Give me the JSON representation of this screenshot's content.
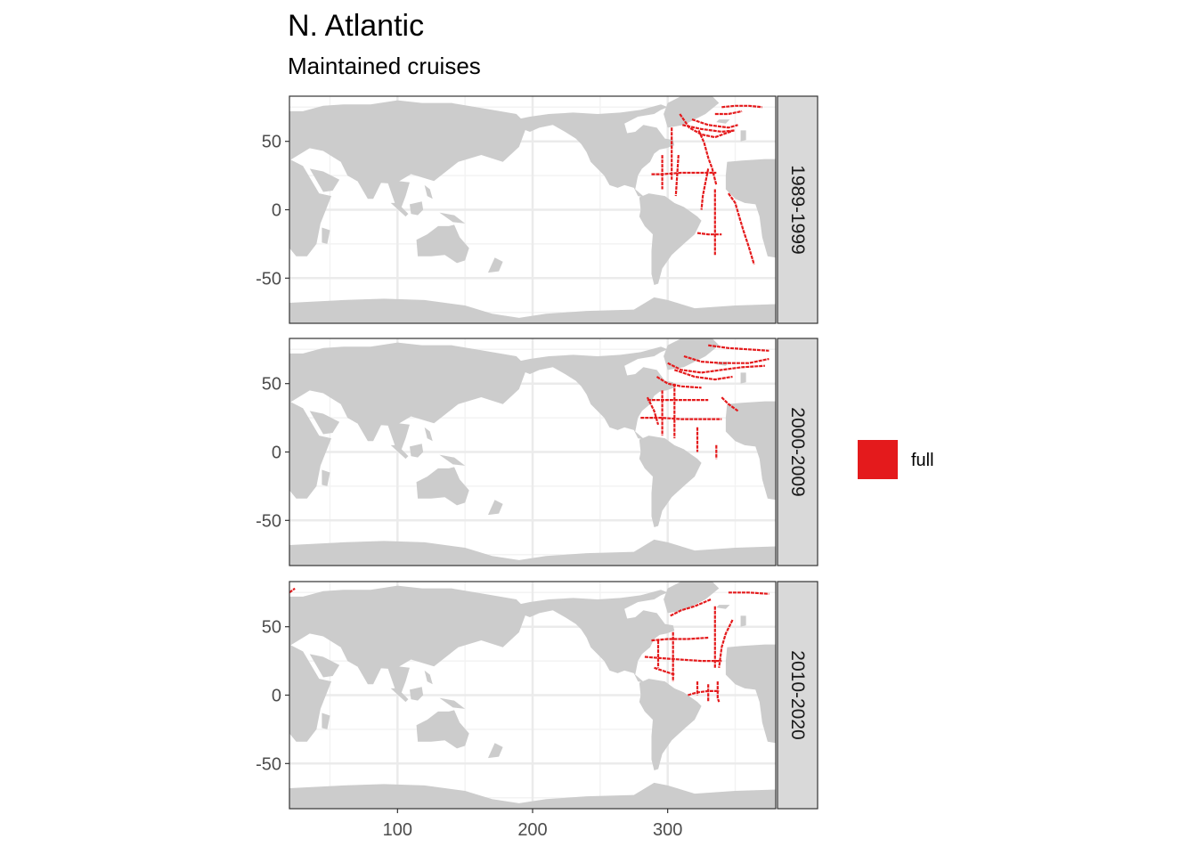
{
  "title": "N. Atlantic",
  "subtitle": "Maintained cruises",
  "colors": {
    "land": "#cccccc",
    "ocean": "#ffffff",
    "grid": "#ebebeb",
    "track": "#e41a1c",
    "strip": "#d9d9d9",
    "border": "#333333"
  },
  "chart_data": {
    "type": "map",
    "x_ticks": [
      100,
      200,
      300
    ],
    "y_ticks": [
      50,
      0,
      -50
    ],
    "xlim": [
      20,
      380
    ],
    "ylim": [
      -83,
      83
    ],
    "grid": true,
    "legend_position": "right",
    "legend": [
      {
        "label": "full",
        "color": "#e41a1c"
      }
    ],
    "panels": [
      {
        "strip": "1989-1999",
        "tracks": [
          [
            [
              309,
              70
            ],
            [
              316,
              60
            ],
            [
              325,
              55
            ],
            [
              335,
              53
            ],
            [
              349,
              58
            ]
          ],
          [
            [
              311,
              62
            ],
            [
              325,
              59
            ],
            [
              340,
              57
            ],
            [
              350,
              58
            ]
          ],
          [
            [
              318,
              66
            ],
            [
              330,
              62
            ],
            [
              345,
              60
            ],
            [
              352,
              62
            ]
          ],
          [
            [
              323,
              58
            ],
            [
              327,
              49
            ],
            [
              330,
              38
            ],
            [
              333,
              30
            ],
            [
              336,
              18
            ]
          ],
          [
            [
              303,
              60
            ],
            [
              303,
              40
            ],
            [
              303,
              22
            ]
          ],
          [
            [
              288,
              26
            ],
            [
              296,
              26
            ],
            [
              310,
              27
            ],
            [
              322,
              27
            ],
            [
              336,
              27
            ]
          ],
          [
            [
              308,
              40
            ],
            [
              307,
              25
            ],
            [
              306,
              10
            ]
          ],
          [
            [
              296,
              40
            ],
            [
              296,
              30
            ],
            [
              296,
              15
            ]
          ],
          [
            [
              330,
              30
            ],
            [
              328,
              20
            ],
            [
              326,
              10
            ],
            [
              325,
              0
            ]
          ],
          [
            [
              335,
              15
            ],
            [
              335,
              0
            ],
            [
              335,
              -20
            ],
            [
              335,
              -33
            ]
          ],
          [
            [
              322,
              -17
            ],
            [
              330,
              -18
            ],
            [
              340,
              -18
            ]
          ],
          [
            [
              345,
              12
            ],
            [
              350,
              5
            ],
            [
              353,
              -5
            ],
            [
              356,
              -15
            ],
            [
              360,
              -27
            ],
            [
              364,
              -40
            ]
          ],
          [
            [
              340,
              75
            ],
            [
              350,
              76
            ],
            [
              360,
              76
            ],
            [
              370,
              75
            ]
          ],
          [
            [
              335,
              70
            ],
            [
              345,
              70
            ],
            [
              355,
              72
            ]
          ]
        ]
      },
      {
        "strip": "2000-2009",
        "tracks": [
          [
            [
              300,
              65
            ],
            [
              310,
              60
            ],
            [
              325,
              58
            ],
            [
              340,
              60
            ],
            [
              355,
              62
            ],
            [
              372,
              63
            ]
          ],
          [
            [
              305,
              60
            ],
            [
              320,
              55
            ],
            [
              335,
              53
            ],
            [
              348,
              55
            ]
          ],
          [
            [
              312,
              70
            ],
            [
              325,
              66
            ],
            [
              340,
              65
            ],
            [
              360,
              65
            ],
            [
              375,
              68
            ]
          ],
          [
            [
              330,
              78
            ],
            [
              345,
              76
            ],
            [
              360,
              75
            ],
            [
              375,
              74
            ]
          ],
          [
            [
              292,
              55
            ],
            [
              300,
              50
            ],
            [
              310,
              48
            ],
            [
              325,
              47
            ]
          ],
          [
            [
              285,
              38
            ],
            [
              298,
              38
            ],
            [
              312,
              38
            ],
            [
              330,
              38
            ]
          ],
          [
            [
              280,
              25
            ],
            [
              295,
              25
            ],
            [
              310,
              24
            ],
            [
              325,
              24
            ],
            [
              340,
              24
            ]
          ],
          [
            [
              305,
              50
            ],
            [
              305,
              30
            ],
            [
              305,
              10
            ]
          ],
          [
            [
              296,
              45
            ],
            [
              296,
              30
            ],
            [
              296,
              12
            ]
          ],
          [
            [
              285,
              40
            ],
            [
              290,
              30
            ],
            [
              293,
              20
            ]
          ],
          [
            [
              322,
              18
            ],
            [
              322,
              5
            ],
            [
              322,
              0
            ]
          ],
          [
            [
              336,
              5
            ],
            [
              336,
              -2
            ],
            [
              336,
              -5
            ]
          ],
          [
            [
              340,
              40
            ],
            [
              345,
              35
            ],
            [
              352,
              30
            ]
          ]
        ]
      },
      {
        "strip": "2010-2020",
        "tracks": [
          [
            [
              345,
              75
            ],
            [
              360,
              75
            ],
            [
              375,
              74
            ]
          ],
          [
            [
              302,
              58
            ],
            [
              310,
              62
            ],
            [
              320,
              65
            ],
            [
              332,
              70
            ]
          ],
          [
            [
              288,
              40
            ],
            [
              300,
              41
            ],
            [
              315,
              41
            ],
            [
              330,
              42
            ]
          ],
          [
            [
              283,
              28
            ],
            [
              295,
              27
            ],
            [
              310,
              26
            ],
            [
              325,
              25
            ],
            [
              340,
              25
            ]
          ],
          [
            [
              304,
              46
            ],
            [
              304,
              35
            ],
            [
              304,
              20
            ],
            [
              304,
              10
            ]
          ],
          [
            [
              293,
              40
            ],
            [
              293,
              30
            ],
            [
              293,
              20
            ]
          ],
          [
            [
              335,
              65
            ],
            [
              335,
              50
            ],
            [
              335,
              35
            ],
            [
              335,
              20
            ]
          ],
          [
            [
              348,
              55
            ],
            [
              343,
              45
            ],
            [
              340,
              35
            ],
            [
              338,
              20
            ]
          ],
          [
            [
              315,
              0
            ],
            [
              322,
              2
            ],
            [
              330,
              3
            ],
            [
              338,
              3
            ]
          ],
          [
            [
              330,
              8
            ],
            [
              330,
              -5
            ]
          ],
          [
            [
              322,
              10
            ],
            [
              322,
              0
            ]
          ],
          [
            [
              337,
              10
            ],
            [
              337,
              -2
            ],
            [
              338,
              -5
            ]
          ],
          [
            [
              20,
              75
            ],
            [
              24,
              78
            ]
          ],
          [
            [
              290,
              20
            ],
            [
              305,
              15
            ]
          ]
        ]
      }
    ]
  }
}
